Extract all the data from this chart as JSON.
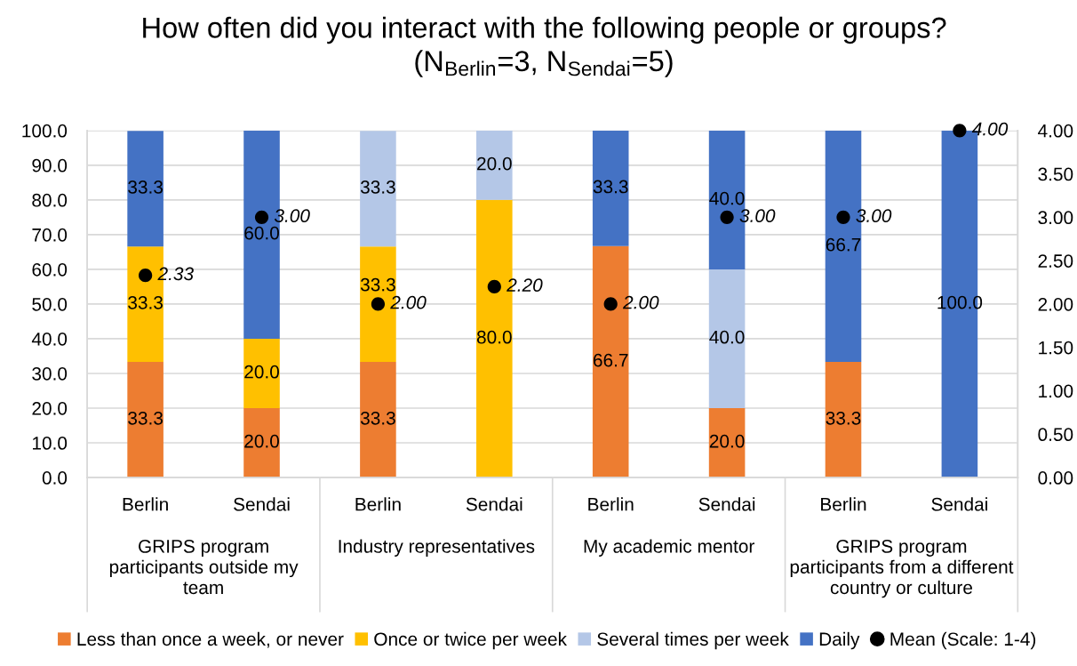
{
  "chart_data": {
    "type": "bar",
    "title": "How often did you interact with the following people or groups?\n(N$_{Berlin}$=3, N$_{Sendai}$=5)",
    "categories": [
      "Berlin",
      "Sendai",
      "Berlin",
      "Sendai",
      "Berlin",
      "Sendai",
      "Berlin",
      "Sendai"
    ],
    "annotations": [
      "GRIPS program participants outside my team",
      "Industry representatives",
      "My academic mentor",
      "GRIPS program participants from a different country or culture"
    ],
    "stacked": true,
    "series": [
      {
        "name": "Less than once a week, or never",
        "color": "#ed7d31",
        "values": [
          33.3,
          20.0,
          33.3,
          null,
          66.7,
          20.0,
          33.3,
          null
        ],
        "value_labels": [
          "33.3",
          "20.0",
          "33.3",
          null,
          "66.7",
          "20.0",
          "33.3",
          null
        ]
      },
      {
        "name": "Once or twice per week",
        "color": "#ffc000",
        "values": [
          33.3,
          20.0,
          33.3,
          80.0,
          null,
          null,
          null,
          null
        ],
        "value_labels": [
          "33.3",
          "20.0",
          "33.3",
          "80.0",
          null,
          null,
          null,
          null
        ]
      },
      {
        "name": "Several times per week",
        "color": "#b4c7e7",
        "values": [
          null,
          null,
          33.3,
          20.0,
          null,
          40.0,
          null,
          null
        ],
        "value_labels": [
          null,
          null,
          "33.3",
          "20.0",
          null,
          "40.0",
          null,
          null
        ]
      },
      {
        "name": "Daily",
        "color": "#4472c4",
        "values": [
          33.3,
          60.0,
          null,
          null,
          33.3,
          40.0,
          66.7,
          100.0
        ],
        "value_labels": [
          "33.3",
          "60.0",
          null,
          null,
          "33.3",
          "40.0",
          "66.7",
          "100.0"
        ]
      },
      {
        "name": "Mean (Scale: 1-4)",
        "type": "scatter",
        "axis": "y2",
        "color": "#000000",
        "values": [
          2.33,
          3.0,
          2.0,
          2.2,
          2.0,
          3.0,
          3.0,
          4.0
        ],
        "value_labels": [
          "2.33",
          "3.00",
          "2.00",
          "2.20",
          "2.00",
          "3.00",
          "3.00",
          "4.00"
        ]
      }
    ],
    "ylim": [
      0,
      100
    ],
    "yticks": [
      {
        "value": 0,
        "label": "0.0"
      },
      {
        "value": 10,
        "label": "10.0"
      },
      {
        "value": 20,
        "label": "20.0"
      },
      {
        "value": 30,
        "label": "30.0"
      },
      {
        "value": 40,
        "label": "40.0"
      },
      {
        "value": 50,
        "label": "50.0"
      },
      {
        "value": 60,
        "label": "60.0"
      },
      {
        "value": 70,
        "label": "70.0"
      },
      {
        "value": 80,
        "label": "80.0"
      },
      {
        "value": 90,
        "label": "90.0"
      },
      {
        "value": 100,
        "label": "100.0"
      }
    ],
    "y2lim": [
      0,
      4
    ],
    "y2ticks": [
      {
        "value": 0,
        "label": "0.00"
      },
      {
        "value": 0.5,
        "label": "0.50"
      },
      {
        "value": 1,
        "label": "1.00"
      },
      {
        "value": 1.5,
        "label": "1.50"
      },
      {
        "value": 2,
        "label": "2.00"
      },
      {
        "value": 2.5,
        "label": "2.50"
      },
      {
        "value": 3,
        "label": "3.00"
      },
      {
        "value": 3.5,
        "label": "3.50"
      },
      {
        "value": 4,
        "label": "4.00"
      }
    ],
    "grid": "y",
    "legend": "bottom",
    "marker": "circle"
  }
}
